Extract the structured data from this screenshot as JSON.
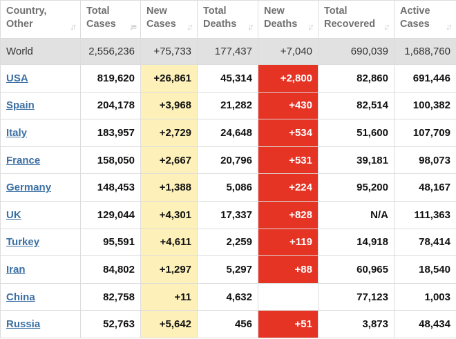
{
  "headers": [
    {
      "line1": "Country,",
      "line2": "Other",
      "icon": "sort-both-icon"
    },
    {
      "line1": "Total",
      "line2": "Cases",
      "icon": "sort-desc-icon"
    },
    {
      "line1": "New",
      "line2": "Cases",
      "icon": "sort-both-icon"
    },
    {
      "line1": "Total",
      "line2": "Deaths",
      "icon": "sort-both-icon"
    },
    {
      "line1": "New",
      "line2": "Deaths",
      "icon": "sort-both-icon"
    },
    {
      "line1": "Total",
      "line2": "Recovered",
      "icon": "sort-both-icon"
    },
    {
      "line1": "Active",
      "line2": "Cases",
      "icon": "sort-both-icon"
    }
  ],
  "world": {
    "country": "World",
    "total_cases": "2,556,236",
    "new_cases": "+75,733",
    "total_deaths": "177,437",
    "new_deaths": "+7,040",
    "total_recovered": "690,039",
    "active_cases": "1,688,760"
  },
  "rows": [
    {
      "country": "USA",
      "total_cases": "819,620",
      "new_cases": "+26,861",
      "total_deaths": "45,314",
      "new_deaths": "+2,800",
      "total_recovered": "82,860",
      "active_cases": "691,446"
    },
    {
      "country": "Spain",
      "total_cases": "204,178",
      "new_cases": "+3,968",
      "total_deaths": "21,282",
      "new_deaths": "+430",
      "total_recovered": "82,514",
      "active_cases": "100,382"
    },
    {
      "country": "Italy",
      "total_cases": "183,957",
      "new_cases": "+2,729",
      "total_deaths": "24,648",
      "new_deaths": "+534",
      "total_recovered": "51,600",
      "active_cases": "107,709"
    },
    {
      "country": "France",
      "total_cases": "158,050",
      "new_cases": "+2,667",
      "total_deaths": "20,796",
      "new_deaths": "+531",
      "total_recovered": "39,181",
      "active_cases": "98,073"
    },
    {
      "country": "Germany",
      "total_cases": "148,453",
      "new_cases": "+1,388",
      "total_deaths": "5,086",
      "new_deaths": "+224",
      "total_recovered": "95,200",
      "active_cases": "48,167"
    },
    {
      "country": "UK",
      "total_cases": "129,044",
      "new_cases": "+4,301",
      "total_deaths": "17,337",
      "new_deaths": "+828",
      "total_recovered": "N/A",
      "active_cases": "111,363"
    },
    {
      "country": "Turkey",
      "total_cases": "95,591",
      "new_cases": "+4,611",
      "total_deaths": "2,259",
      "new_deaths": "+119",
      "total_recovered": "14,918",
      "active_cases": "78,414"
    },
    {
      "country": "Iran",
      "total_cases": "84,802",
      "new_cases": "+1,297",
      "total_deaths": "5,297",
      "new_deaths": "+88",
      "total_recovered": "60,965",
      "active_cases": "18,540"
    },
    {
      "country": "China",
      "total_cases": "82,758",
      "new_cases": "+11",
      "total_deaths": "4,632",
      "new_deaths": "",
      "total_recovered": "77,123",
      "active_cases": "1,003"
    },
    {
      "country": "Russia",
      "total_cases": "52,763",
      "new_cases": "+5,642",
      "total_deaths": "456",
      "new_deaths": "+51",
      "total_recovered": "3,873",
      "active_cases": "48,434"
    }
  ],
  "colors": {
    "new_cases_bg": "#fdf1b9",
    "new_deaths_bg": "#e53324",
    "world_row_bg": "#e1e1e1",
    "link": "#3b6fa3",
    "header_text": "#707070"
  }
}
